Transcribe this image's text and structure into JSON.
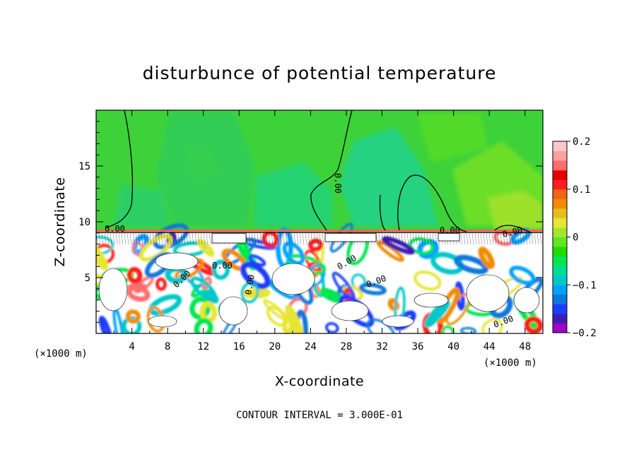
{
  "chart_data": {
    "type": "heatmap",
    "title": "disturbunce of potential temperature",
    "xlabel": "X-coordinate",
    "ylabel": "Z-coordinate",
    "x_unit": "(×1000 m)",
    "x_unit_right": "(×1000 m)",
    "xlim": [
      0,
      50
    ],
    "ylim": [
      0,
      20
    ],
    "x_ticks": [
      "4",
      "8",
      "12",
      "16",
      "20",
      "24",
      "28",
      "32",
      "36",
      "40",
      "44",
      "48"
    ],
    "x_tick_values": [
      4,
      8,
      12,
      16,
      20,
      24,
      28,
      32,
      36,
      40,
      44,
      48
    ],
    "y_ticks": [
      "5",
      "10",
      "15"
    ],
    "y_tick_values": [
      5,
      10,
      15
    ],
    "colorbar": {
      "min": -0.2,
      "max": 0.2,
      "tick_labels": [
        "0.2",
        "0.1",
        "0",
        "−0.1",
        "−0.2"
      ],
      "tick_values": [
        0.2,
        0.1,
        0,
        -0.1,
        -0.2
      ],
      "colors": [
        "#a000c8",
        "#3c1eb4",
        "#1e3cff",
        "#0a78dc",
        "#00a0ff",
        "#00c8c8",
        "#00dc96",
        "#00e650",
        "#1edc00",
        "#64e61e",
        "#a0e632",
        "#e6e632",
        "#e6be1e",
        "#f08c00",
        "#f06414",
        "#ff1e1e",
        "#e60000",
        "#ff6e6e",
        "#ffa0a0",
        "#ffc8c8"
      ]
    },
    "contour_labels": [
      "0.00",
      "0.00",
      "0.00",
      "0.00",
      "0.00",
      "0.00",
      "0.00",
      "0.00",
      "0.00",
      "0.00"
    ],
    "contour_interval_label": "CONTOUR INTERVAL = 3.000E-01"
  }
}
